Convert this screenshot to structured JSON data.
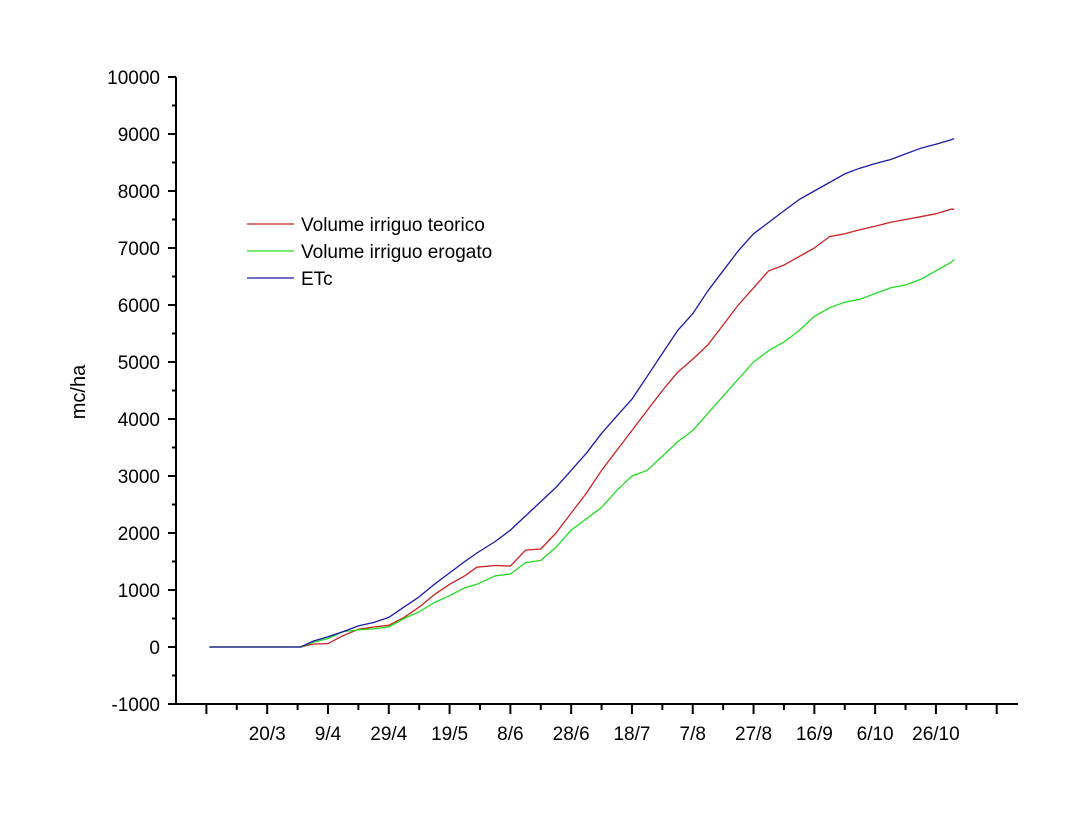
{
  "chart_data": {
    "type": "line",
    "title": "",
    "xlabel": "",
    "ylabel": "mc/ha",
    "ylim": [
      -1000,
      10000
    ],
    "yticks": [
      -1000,
      0,
      1000,
      2000,
      3000,
      4000,
      5000,
      6000,
      7000,
      8000,
      9000,
      10000
    ],
    "xlim": [
      "2023-02-18",
      "2023-11-22"
    ],
    "xticks": [
      "2023-03-20",
      "2023-04-09",
      "2023-04-29",
      "2023-05-19",
      "2023-06-08",
      "2023-06-28",
      "2023-07-18",
      "2023-08-07",
      "2023-08-27",
      "2023-09-16",
      "2023-10-06",
      "2023-10-26"
    ],
    "xtick_labels": [
      "20/3",
      "9/4",
      "29/4",
      "19/5",
      "8/6",
      "28/6",
      "18/7",
      "7/8",
      "27/8",
      "16/9",
      "6/10",
      "26/10"
    ],
    "grid": false,
    "legend_position": "top-left",
    "colors": {
      "Volume irriguo teorico": "#cc2222",
      "Volume irriguo erogato": "#22dd22",
      "ETc": "#1a1aa8"
    },
    "series": [
      {
        "name": "Volume irriguo teorico",
        "x": [
          "2023-03-01",
          "2023-03-31",
          "2023-04-04",
          "2023-04-09",
          "2023-04-14",
          "2023-04-19",
          "2023-04-24",
          "2023-04-29",
          "2023-05-04",
          "2023-05-09",
          "2023-05-14",
          "2023-05-19",
          "2023-05-24",
          "2023-05-28",
          "2023-06-03",
          "2023-06-08",
          "2023-06-13",
          "2023-06-18",
          "2023-06-23",
          "2023-06-28",
          "2023-07-03",
          "2023-07-08",
          "2023-07-13",
          "2023-07-18",
          "2023-07-23",
          "2023-07-28",
          "2023-08-02",
          "2023-08-07",
          "2023-08-12",
          "2023-08-17",
          "2023-08-22",
          "2023-08-27",
          "2023-09-01",
          "2023-09-06",
          "2023-09-11",
          "2023-09-16",
          "2023-09-21",
          "2023-09-26",
          "2023-10-01",
          "2023-10-06",
          "2023-10-11",
          "2023-10-16",
          "2023-10-21",
          "2023-10-26",
          "2023-10-31",
          "2023-11-01"
        ],
        "values": [
          0,
          0,
          50,
          60,
          200,
          310,
          350,
          380,
          520,
          700,
          920,
          1100,
          1250,
          1400,
          1430,
          1420,
          1700,
          1720,
          2000,
          2350,
          2700,
          3100,
          3450,
          3800,
          4150,
          4500,
          4820,
          5050,
          5300,
          5650,
          6000,
          6300,
          6600,
          6700,
          6850,
          7000,
          7200,
          7250,
          7320,
          7380,
          7450,
          7500,
          7550,
          7600,
          7680,
          7680
        ]
      },
      {
        "name": "Volume irriguo erogato",
        "x": [
          "2023-03-01",
          "2023-03-31",
          "2023-04-04",
          "2023-04-09",
          "2023-04-14",
          "2023-04-19",
          "2023-04-24",
          "2023-04-29",
          "2023-05-04",
          "2023-05-09",
          "2023-05-14",
          "2023-05-19",
          "2023-05-24",
          "2023-05-28",
          "2023-06-03",
          "2023-06-08",
          "2023-06-13",
          "2023-06-18",
          "2023-06-23",
          "2023-06-28",
          "2023-07-03",
          "2023-07-08",
          "2023-07-13",
          "2023-07-18",
          "2023-07-23",
          "2023-07-28",
          "2023-08-02",
          "2023-08-07",
          "2023-08-12",
          "2023-08-17",
          "2023-08-22",
          "2023-08-27",
          "2023-09-01",
          "2023-09-06",
          "2023-09-11",
          "2023-09-16",
          "2023-09-21",
          "2023-09-26",
          "2023-10-01",
          "2023-10-06",
          "2023-10-11",
          "2023-10-16",
          "2023-10-21",
          "2023-10-26",
          "2023-10-31",
          "2023-11-01"
        ],
        "values": [
          0,
          0,
          80,
          150,
          270,
          300,
          320,
          350,
          500,
          620,
          780,
          900,
          1040,
          1100,
          1250,
          1280,
          1480,
          1520,
          1750,
          2050,
          2250,
          2450,
          2750,
          3000,
          3100,
          3350,
          3600,
          3800,
          4100,
          4400,
          4700,
          5000,
          5200,
          5350,
          5550,
          5800,
          5950,
          6050,
          6100,
          6200,
          6300,
          6350,
          6450,
          6600,
          6750,
          6800
        ]
      },
      {
        "name": "ETc",
        "x": [
          "2023-03-01",
          "2023-03-31",
          "2023-04-04",
          "2023-04-09",
          "2023-04-14",
          "2023-04-19",
          "2023-04-24",
          "2023-04-29",
          "2023-05-04",
          "2023-05-09",
          "2023-05-14",
          "2023-05-19",
          "2023-05-24",
          "2023-05-28",
          "2023-06-03",
          "2023-06-08",
          "2023-06-13",
          "2023-06-18",
          "2023-06-23",
          "2023-06-28",
          "2023-07-03",
          "2023-07-08",
          "2023-07-13",
          "2023-07-18",
          "2023-07-23",
          "2023-07-28",
          "2023-08-02",
          "2023-08-07",
          "2023-08-12",
          "2023-08-17",
          "2023-08-22",
          "2023-08-27",
          "2023-09-01",
          "2023-09-06",
          "2023-09-11",
          "2023-09-16",
          "2023-09-21",
          "2023-09-26",
          "2023-10-01",
          "2023-10-06",
          "2023-10-11",
          "2023-10-16",
          "2023-10-21",
          "2023-10-26",
          "2023-10-31",
          "2023-11-01"
        ],
        "values": [
          0,
          0,
          100,
          180,
          270,
          370,
          430,
          520,
          700,
          880,
          1100,
          1300,
          1500,
          1650,
          1850,
          2050,
          2300,
          2550,
          2800,
          3100,
          3400,
          3750,
          4050,
          4350,
          4750,
          5150,
          5550,
          5850,
          6250,
          6600,
          6950,
          7250,
          7450,
          7650,
          7850,
          8000,
          8150,
          8300,
          8400,
          8480,
          8550,
          8650,
          8750,
          8820,
          8900,
          8920
        ]
      }
    ]
  }
}
